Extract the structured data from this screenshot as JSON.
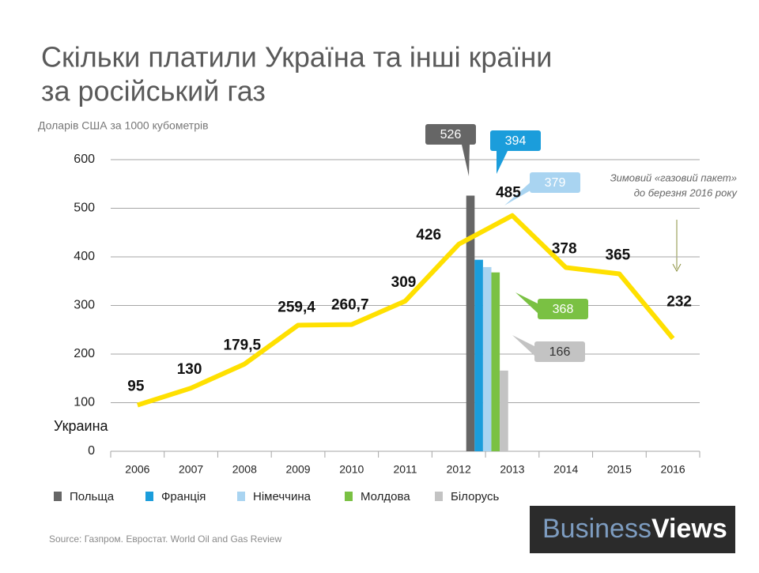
{
  "chart_data": {
    "type": "line",
    "title": [
      "Скільки платили Україна та інші країни",
      "за російський газ"
    ],
    "subtitle": "Доларів США за 1000 кубометрів",
    "categories": [
      "2006",
      "2007",
      "2008",
      "2009",
      "2010",
      "2011",
      "2012",
      "2013",
      "2014",
      "2015",
      "2016"
    ],
    "series": [
      {
        "name": "Украина",
        "color": "#ffe000",
        "values": [
          95,
          130,
          179.5,
          259.4,
          260.7,
          309,
          426,
          485,
          378,
          365,
          232
        ],
        "value_labels": [
          "95",
          "130",
          "179,5",
          "259,4",
          "260,7",
          "309",
          "426",
          "485",
          "378",
          "365",
          "232"
        ]
      }
    ],
    "bars": {
      "names": [
        "Польща",
        "Франція",
        "Німеччина",
        "Молдова",
        "Білорусь"
      ],
      "values": [
        526,
        394,
        379,
        368,
        166
      ],
      "colors": [
        "#666666",
        "#1b9ddb",
        "#a9d4f1",
        "#7ac143",
        "#c3c3c3"
      ]
    },
    "ylim": [
      0,
      600
    ],
    "yticks": [
      0,
      100,
      200,
      300,
      400,
      500,
      600
    ],
    "grid": true,
    "annotation": [
      "Зимовий «газовий пакет»",
      "до березня 2016 року"
    ],
    "source": "Source: Газпром. Евростат. World Oil and Gas Review",
    "logo": [
      "Business",
      "Views"
    ]
  }
}
